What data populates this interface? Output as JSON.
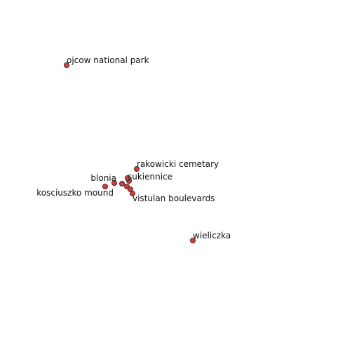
{
  "map": {
    "marker_color": "#c94040",
    "marker_stroke": "#3a1a1a",
    "places": [
      {
        "label": "ojcow national park"
      },
      {
        "label": "rakowicki cemetary"
      },
      {
        "label": "blonia"
      },
      {
        "label": "sukiennice"
      },
      {
        "label": "kosciuszko mound"
      },
      {
        "label": "vistulan boulevards"
      },
      {
        "label": "wieliczka"
      },
      {
        "label": ""
      },
      {
        "label": ""
      },
      {
        "label": ""
      },
      {
        "label": ""
      }
    ]
  }
}
